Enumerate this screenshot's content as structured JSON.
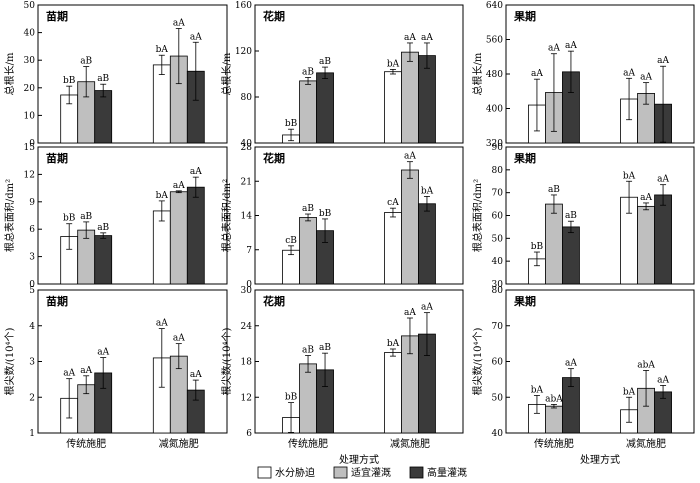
{
  "colors": {
    "water_stress": "#ffffff",
    "suitable_irrigation": "#bfbfbf",
    "high_irrigation": "#3a3a3a",
    "axis": "#000000"
  },
  "legend": {
    "items": [
      {
        "label": "水分胁迫",
        "color": "#ffffff"
      },
      {
        "label": "适宜灌溉",
        "color": "#bfbfbf"
      },
      {
        "label": "高量灌溉",
        "color": "#3a3a3a"
      }
    ],
    "placement": "bottom-center"
  },
  "chart_data": [
    {
      "type": "bar",
      "title": "苗期",
      "ylabel": "总根长/m",
      "xlabel": "",
      "ylim": [
        0,
        50
      ],
      "yticks": [
        0,
        10,
        20,
        30,
        40,
        50
      ],
      "categories": [
        "传统施肥",
        "减氮施肥"
      ],
      "series": [
        {
          "name": "水分胁迫",
          "values": [
            17.4,
            28.3
          ],
          "errors": [
            3.2,
            3.5
          ],
          "labels": [
            "bB",
            "bA"
          ]
        },
        {
          "name": "适宜灌溉",
          "values": [
            22.2,
            31.5
          ],
          "errors": [
            5.5,
            10.0
          ],
          "labels": [
            "aB",
            "aA"
          ]
        },
        {
          "name": "高量灌溉",
          "values": [
            19.0,
            26.0
          ],
          "errors": [
            2.3,
            10.5
          ],
          "labels": [
            "aB",
            "aA"
          ]
        }
      ]
    },
    {
      "type": "bar",
      "title": "花期",
      "ylabel": "总根长/m",
      "xlabel": "",
      "ylim": [
        40,
        160
      ],
      "yticks": [
        40,
        80,
        120,
        160
      ],
      "categories": [
        "传统施肥",
        "减氮施肥"
      ],
      "series": [
        {
          "name": "水分胁迫",
          "values": [
            47,
            102
          ],
          "errors": [
            5,
            2
          ],
          "labels": [
            "bB",
            "bA"
          ]
        },
        {
          "name": "适宜灌溉",
          "values": [
            94,
            119
          ],
          "errors": [
            3,
            8
          ],
          "labels": [
            "aB",
            "aA"
          ]
        },
        {
          "name": "高量灌溉",
          "values": [
            101,
            116
          ],
          "errors": [
            5,
            11
          ],
          "labels": [
            "aB",
            "aA"
          ]
        }
      ]
    },
    {
      "type": "bar",
      "title": "果期",
      "ylabel": "总根长/m",
      "xlabel": "",
      "ylim": [
        320,
        640
      ],
      "yticks": [
        320,
        400,
        480,
        560,
        640
      ],
      "categories": [
        "传统施肥",
        "减氮施肥"
      ],
      "series": [
        {
          "name": "水分胁迫",
          "values": [
            408,
            422
          ],
          "errors": [
            60,
            48
          ],
          "labels": [
            "aA",
            "aA"
          ]
        },
        {
          "name": "适宜灌溉",
          "values": [
            437,
            435
          ],
          "errors": [
            90,
            25
          ],
          "labels": [
            "aA",
            "aA"
          ]
        },
        {
          "name": "高量灌溉",
          "values": [
            485,
            410
          ],
          "errors": [
            48,
            88
          ],
          "labels": [
            "aA",
            "aA"
          ]
        }
      ]
    },
    {
      "type": "bar",
      "title": "苗期",
      "ylabel": "根总表面积/dm²",
      "xlabel": "",
      "ylim": [
        0,
        15
      ],
      "yticks": [
        0,
        3,
        6,
        9,
        12,
        15
      ],
      "categories": [
        "传统施肥",
        "减氮施肥"
      ],
      "series": [
        {
          "name": "水分胁迫",
          "values": [
            5.2,
            8.0
          ],
          "errors": [
            1.4,
            1.1
          ],
          "labels": [
            "bB",
            "bA"
          ]
        },
        {
          "name": "适宜灌溉",
          "values": [
            5.9,
            10.1
          ],
          "errors": [
            0.9,
            0.1
          ],
          "labels": [
            "aB",
            "aA"
          ]
        },
        {
          "name": "高量灌溉",
          "values": [
            5.3,
            10.6
          ],
          "errors": [
            0.3,
            1.1
          ],
          "labels": [
            "aB",
            "aA"
          ]
        }
      ]
    },
    {
      "type": "bar",
      "title": "花期",
      "ylabel": "根总表面积/dm²",
      "xlabel": "",
      "ylim": [
        0,
        28
      ],
      "yticks": [
        0,
        7,
        14,
        21,
        28
      ],
      "categories": [
        "传统施肥",
        "减氮施肥"
      ],
      "series": [
        {
          "name": "水分胁迫",
          "values": [
            6.9,
            14.6
          ],
          "errors": [
            0.9,
            0.9
          ],
          "labels": [
            "cB",
            "cA"
          ]
        },
        {
          "name": "适宜灌溉",
          "values": [
            13.6,
            23.3
          ],
          "errors": [
            0.7,
            1.7
          ],
          "labels": [
            "aB",
            "aA"
          ]
        },
        {
          "name": "高量灌溉",
          "values": [
            10.9,
            16.4
          ],
          "errors": [
            2.4,
            1.5
          ],
          "labels": [
            "bB",
            "bA"
          ]
        }
      ]
    },
    {
      "type": "bar",
      "title": "果期",
      "ylabel": "根总表面积/dm²",
      "xlabel": "",
      "ylim": [
        30,
        90
      ],
      "yticks": [
        30,
        40,
        50,
        60,
        70,
        80,
        90
      ],
      "categories": [
        "传统施肥",
        "减氮施肥"
      ],
      "series": [
        {
          "name": "水分胁迫",
          "values": [
            41,
            68
          ],
          "errors": [
            3,
            7
          ],
          "labels": [
            "bB",
            "bA"
          ]
        },
        {
          "name": "适宜灌溉",
          "values": [
            65,
            64
          ],
          "errors": [
            4,
            1.5
          ],
          "labels": [
            "aB",
            "aA"
          ]
        },
        {
          "name": "高量灌溉",
          "values": [
            55,
            69
          ],
          "errors": [
            2.5,
            4.5
          ],
          "labels": [
            "aB",
            "aA"
          ]
        }
      ]
    },
    {
      "type": "bar",
      "title": "苗期",
      "ylabel": "根尖数/(10⁴个)",
      "xlabel": "",
      "ylim": [
        1,
        5
      ],
      "yticks": [
        1,
        2,
        3,
        4,
        5
      ],
      "categories": [
        "传统施肥",
        "减氮施肥"
      ],
      "series": [
        {
          "name": "水分胁迫",
          "values": [
            1.97,
            3.1
          ],
          "errors": [
            0.55,
            0.82
          ],
          "labels": [
            "aA",
            "aA"
          ]
        },
        {
          "name": "适宜灌溉",
          "values": [
            2.35,
            3.15
          ],
          "errors": [
            0.25,
            0.35
          ],
          "labels": [
            "aA",
            "aA"
          ]
        },
        {
          "name": "高量灌溉",
          "values": [
            2.68,
            2.2
          ],
          "errors": [
            0.43,
            0.28
          ],
          "labels": [
            "aA",
            "aA"
          ]
        }
      ]
    },
    {
      "type": "bar",
      "title": "花期",
      "ylabel": "根尖数/(10⁴个)",
      "xlabel": "处理方式",
      "ylim": [
        6,
        30
      ],
      "yticks": [
        6,
        12,
        18,
        24,
        30
      ],
      "categories": [
        "传统施肥",
        "减氮施肥"
      ],
      "series": [
        {
          "name": "水分胁迫",
          "values": [
            8.6,
            19.5
          ],
          "errors": [
            2.5,
            0.6
          ],
          "labels": [
            "bB",
            "bA"
          ]
        },
        {
          "name": "适宜灌溉",
          "values": [
            17.6,
            22.3
          ],
          "errors": [
            1.4,
            3.0
          ],
          "labels": [
            "aB",
            "aA"
          ]
        },
        {
          "name": "高量灌溉",
          "values": [
            16.6,
            22.6
          ],
          "errors": [
            2.8,
            3.6
          ],
          "labels": [
            "aB",
            "aA"
          ]
        }
      ]
    },
    {
      "type": "bar",
      "title": "果期",
      "ylabel": "根尖数/(10⁴个)",
      "xlabel": "处理方式",
      "ylim": [
        40,
        80
      ],
      "yticks": [
        40,
        50,
        60,
        70,
        80
      ],
      "categories": [
        "传统施肥",
        "减氮施肥"
      ],
      "series": [
        {
          "name": "水分胁迫",
          "values": [
            48,
            46.5
          ],
          "errors": [
            2.5,
            3.5
          ],
          "labels": [
            "bA",
            "bA"
          ]
        },
        {
          "name": "适宜灌溉",
          "values": [
            47.5,
            52.5
          ],
          "errors": [
            0.5,
            5.0
          ],
          "labels": [
            "abA",
            "abA"
          ]
        },
        {
          "name": "高量灌溉",
          "values": [
            55.5,
            51.5
          ],
          "errors": [
            2.5,
            1.8
          ],
          "labels": [
            "aA",
            "aA"
          ]
        }
      ]
    }
  ]
}
